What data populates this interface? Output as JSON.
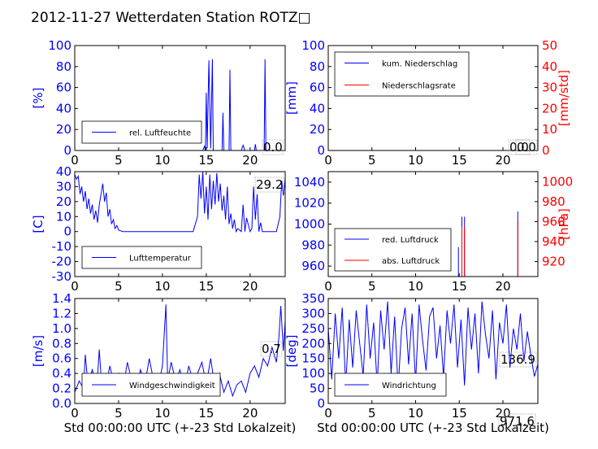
{
  "title": "2012-11-27 Wetterdaten Station ROTZ□",
  "colors": {
    "primary": "#0000ff",
    "secondary": "#ff0000",
    "axis": "#000000"
  },
  "chart_data": [
    {
      "id": "humidity",
      "type": "line",
      "ylabel": "[%]",
      "xlim": [
        0,
        24
      ],
      "ylim": [
        0,
        100
      ],
      "x_ticks": [
        0,
        5,
        10,
        15,
        20
      ],
      "y_ticks": [
        0,
        20,
        40,
        60,
        80,
        100
      ],
      "legend": {
        "position": "lower-left",
        "entries": [
          {
            "label": "rel. Luftfeuchte",
            "color": "#0000ff"
          }
        ]
      },
      "value_box": "0.0",
      "series": [
        {
          "name": "rel. Luftfeuchte",
          "color": "#0000ff",
          "x": [
            0,
            14.6,
            14.8,
            14.9,
            15.0,
            15.1,
            15.3,
            15.5,
            15.7,
            15.8,
            16.0,
            16.8,
            16.9,
            17.0,
            17.6,
            17.7,
            17.8,
            19.0,
            19.2,
            19.4,
            20.5,
            20.6,
            20.7,
            21.6,
            21.7,
            21.8,
            24
          ],
          "y": [
            0,
            0,
            4,
            0,
            55,
            2,
            86,
            2,
            87,
            0,
            0,
            0,
            36,
            0,
            0,
            77,
            0,
            0,
            5,
            0,
            0,
            6,
            0,
            0,
            87,
            0,
            0
          ]
        }
      ]
    },
    {
      "id": "precipitation",
      "type": "line",
      "ylabel": "[mm]",
      "ylabel_right": "[mm/std]",
      "xlim": [
        0,
        24
      ],
      "ylim": [
        0,
        100
      ],
      "ylim_right": [
        0,
        50
      ],
      "x_ticks": [
        0,
        5,
        10,
        15,
        20
      ],
      "y_ticks": [
        0,
        20,
        40,
        60,
        80,
        100
      ],
      "y_ticks_right": [
        0,
        10,
        20,
        30,
        40,
        50
      ],
      "legend": {
        "position": "upper-left",
        "entries": [
          {
            "label": "kum. Niederschlag",
            "color": "#0000ff"
          },
          {
            "label": "Niederschlagsrate",
            "color": "#ff0000"
          }
        ]
      },
      "value_box": "0.0",
      "value_box_2": "0.0",
      "series": [
        {
          "name": "kum. Niederschlag",
          "color": "#0000ff",
          "x": [
            0,
            24
          ],
          "y": [
            0,
            0
          ]
        },
        {
          "name": "Niederschlagsrate",
          "color": "#ff0000",
          "x": [
            0,
            24
          ],
          "y": [
            0,
            0
          ]
        }
      ]
    },
    {
      "id": "temperature",
      "type": "line",
      "ylabel": "[C]",
      "xlim": [
        0,
        24
      ],
      "ylim": [
        -30,
        40
      ],
      "x_ticks": [
        0,
        5,
        10,
        15,
        20
      ],
      "y_ticks": [
        -30,
        -20,
        -10,
        0,
        10,
        20,
        30,
        40
      ],
      "legend": {
        "position": "lower-left",
        "entries": [
          {
            "label": "Lufttemperatur",
            "color": "#0000ff"
          }
        ]
      },
      "value_box": "29.2",
      "series": [
        {
          "name": "Lufttemperatur",
          "color": "#0000ff",
          "x": [
            0,
            0.2,
            0.4,
            0.6,
            0.8,
            1.0,
            1.2,
            1.4,
            1.6,
            1.8,
            2.0,
            2.2,
            2.4,
            2.6,
            2.8,
            3.0,
            3.2,
            3.4,
            3.6,
            3.8,
            4.0,
            4.2,
            4.4,
            4.6,
            4.8,
            5.0,
            5.5,
            6.0,
            7.0,
            10.0,
            13.5,
            14.0,
            14.2,
            14.4,
            14.6,
            14.8,
            15.0,
            15.2,
            15.4,
            15.6,
            15.8,
            16.0,
            16.2,
            16.4,
            16.6,
            16.8,
            17.0,
            17.2,
            17.4,
            17.6,
            17.8,
            18.0,
            18.2,
            18.4,
            18.6,
            19.0,
            19.2,
            19.4,
            19.6,
            20.0,
            20.2,
            20.4,
            20.6,
            20.8,
            21.0,
            21.2,
            21.4,
            21.6,
            22.0,
            23.0,
            23.4,
            23.6,
            23.8,
            24.0
          ],
          "y": [
            38,
            35,
            37,
            25,
            30,
            20,
            27,
            15,
            22,
            12,
            18,
            8,
            14,
            6,
            18,
            25,
            32,
            20,
            26,
            10,
            15,
            5,
            8,
            2,
            4,
            1,
            0,
            0,
            0,
            0,
            0,
            10,
            38,
            22,
            40,
            12,
            30,
            8,
            38,
            15,
            34,
            18,
            39,
            20,
            32,
            14,
            24,
            8,
            30,
            5,
            12,
            2,
            8,
            0,
            2,
            0,
            18,
            0,
            9,
            0,
            2,
            30,
            8,
            25,
            0,
            6,
            0,
            0,
            0,
            0,
            10,
            34,
            24,
            35
          ]
        }
      ]
    },
    {
      "id": "pressure",
      "type": "line",
      "ylabel_right": "[hPa]",
      "xlim": [
        0,
        24
      ],
      "ylim": [
        950,
        1050
      ],
      "ylim_right": [
        905,
        1010
      ],
      "x_ticks": [
        0,
        5,
        10,
        15,
        20
      ],
      "y_ticks": [
        960,
        980,
        1000,
        1020,
        1040
      ],
      "y_ticks_right": [
        920,
        940,
        960,
        980,
        1000
      ],
      "legend": {
        "position": "lower-left",
        "entries": [
          {
            "label": "red. Luftdruck",
            "color": "#0000ff"
          },
          {
            "label": "abs. Luftdruck",
            "color": "#ff0000"
          }
        ]
      },
      "series": [
        {
          "name": "red. Luftdruck",
          "color": "#0000ff",
          "x": [
            14.9,
            14.9,
            14.9,
            15.3,
            15.3,
            15.3,
            15.6,
            15.6,
            15.6,
            21.7,
            21.7,
            21.7
          ],
          "y": [
            950,
            978,
            950,
            950,
            1007,
            950,
            950,
            1007,
            950,
            950,
            1012,
            950
          ]
        },
        {
          "name": "abs. Luftdruck",
          "color": "#ff0000",
          "x": [
            15.3,
            15.3,
            15.3,
            15.6,
            15.6,
            15.6,
            21.7,
            21.7,
            21.7
          ],
          "y": [
            905,
            955,
            905,
            905,
            955,
            905,
            905,
            960,
            905
          ]
        }
      ]
    },
    {
      "id": "windspeed",
      "type": "line",
      "ylabel": "[m/s]",
      "xlabel": "Std 00:00:00 UTC (+-23 Std Lokalzeit)",
      "xlim": [
        0,
        24
      ],
      "ylim": [
        0,
        1.4
      ],
      "x_ticks": [
        0,
        5,
        10,
        15,
        20
      ],
      "y_ticks": [
        0.0,
        0.2,
        0.4,
        0.6,
        0.8,
        1.0,
        1.2,
        1.4
      ],
      "legend": {
        "position": "lower-center",
        "entries": [
          {
            "label": "Windgeschwindigkeit",
            "color": "#0000ff"
          }
        ]
      },
      "value_box": "0.7",
      "series": [
        {
          "name": "Windgeschwindigkeit",
          "color": "#0000ff",
          "x": [
            0,
            0.5,
            1.0,
            1.2,
            1.5,
            2.0,
            2.5,
            2.8,
            3.0,
            3.5,
            4.0,
            4.5,
            5.0,
            5.5,
            6.0,
            6.5,
            7.0,
            7.5,
            8.0,
            8.5,
            9.0,
            9.5,
            10.0,
            10.4,
            10.6,
            11.0,
            11.5,
            12.0,
            12.5,
            13.0,
            13.5,
            14.0,
            14.5,
            15.0,
            15.5,
            16.0,
            16.5,
            17.0,
            17.5,
            18.0,
            18.5,
            19.0,
            19.5,
            20.0,
            20.5,
            21.0,
            21.5,
            22.0,
            22.5,
            23.0,
            23.3,
            23.5,
            23.8,
            24.0
          ],
          "y": [
            0.15,
            0.3,
            0.2,
            0.65,
            0.25,
            0.45,
            0.2,
            0.72,
            0.35,
            0.2,
            0.5,
            0.25,
            0.4,
            0.2,
            0.55,
            0.3,
            0.2,
            0.45,
            0.25,
            0.6,
            0.3,
            0.2,
            0.5,
            1.32,
            0.3,
            0.55,
            0.3,
            0.45,
            0.2,
            0.5,
            0.3,
            0.4,
            0.55,
            0.25,
            0.6,
            0.2,
            0.4,
            0.15,
            0.3,
            0.1,
            0.25,
            0.3,
            0.15,
            0.4,
            0.5,
            0.35,
            0.6,
            0.5,
            0.75,
            0.55,
            0.9,
            1.3,
            0.7,
            1.1
          ]
        }
      ]
    },
    {
      "id": "winddirection",
      "type": "line",
      "ylabel": "[deg]",
      "xlabel": "Std 00:00:00 UTC (+-23 Std Lokalzeit)",
      "xlim": [
        0,
        24
      ],
      "ylim": [
        0,
        350
      ],
      "x_ticks": [
        0,
        5,
        10,
        15,
        20
      ],
      "y_ticks": [
        0,
        50,
        100,
        150,
        200,
        250,
        300,
        350
      ],
      "legend": {
        "position": "lower-left",
        "entries": [
          {
            "label": "Windrichtung",
            "color": "#0000ff"
          }
        ]
      },
      "value_box": "136.9",
      "value_box_2": "971.6",
      "series": [
        {
          "name": "Windrichtung",
          "color": "#0000ff",
          "x": [
            0,
            0.4,
            0.8,
            1.2,
            1.6,
            2.0,
            2.4,
            2.8,
            3.2,
            3.6,
            4.0,
            4.4,
            4.8,
            5.2,
            5.6,
            6.0,
            6.4,
            6.8,
            7.2,
            7.6,
            8.0,
            8.4,
            8.8,
            9.2,
            9.6,
            10.0,
            10.4,
            10.8,
            11.2,
            11.6,
            12.0,
            12.4,
            12.8,
            13.2,
            13.6,
            14.0,
            14.4,
            14.8,
            15.2,
            15.6,
            16.0,
            16.4,
            16.8,
            17.2,
            17.6,
            18.0,
            18.4,
            18.8,
            19.2,
            19.6,
            20.0,
            20.4,
            20.8,
            21.2,
            21.6,
            22.0,
            22.4,
            22.8,
            23.2,
            23.6,
            24.0
          ],
          "y": [
            250,
            80,
            300,
            150,
            320,
            60,
            280,
            120,
            310,
            200,
            90,
            330,
            150,
            270,
            60,
            310,
            180,
            340,
            100,
            290,
            50,
            250,
            320,
            130,
            300,
            70,
            330,
            210,
            110,
            290,
            320,
            150,
            260,
            90,
            310,
            200,
            330,
            120,
            280,
            60,
            320,
            180,
            300,
            100,
            340,
            230,
            150,
            310,
            80,
            270,
            200,
            330,
            120,
            250,
            180,
            300,
            140,
            240,
            160,
            90,
            130
          ]
        }
      ]
    }
  ]
}
